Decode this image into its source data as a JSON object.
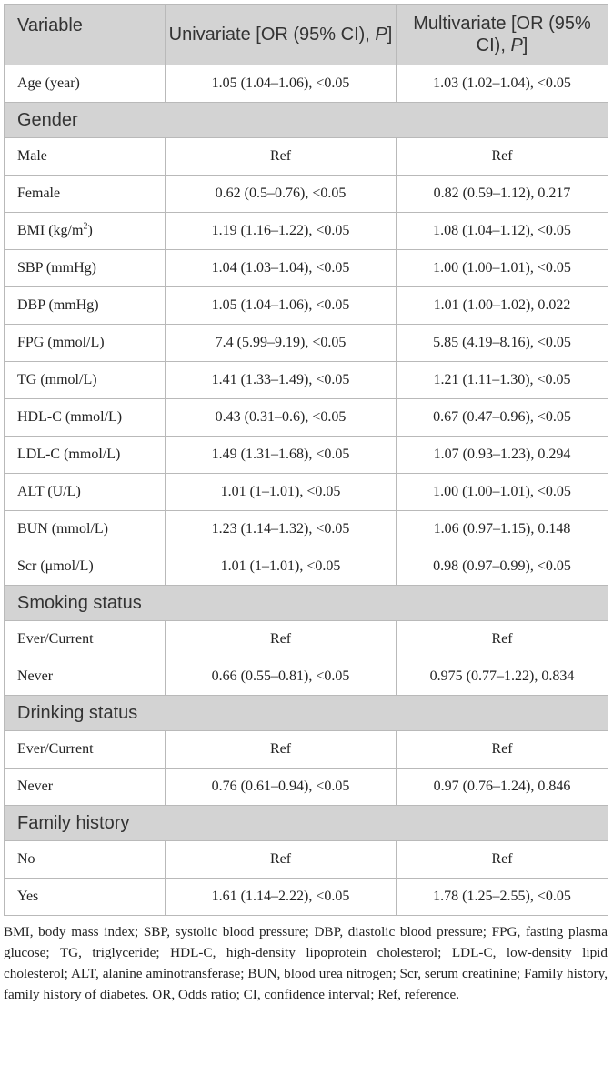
{
  "header": {
    "variable": "Variable",
    "univariate_prefix": "Univariate [OR (95% CI), ",
    "multivariate_prefix": "Multivariate [OR (95% CI), ",
    "p_symbol": "P",
    "close_bracket": "]"
  },
  "rows": [
    {
      "type": "data",
      "label": "Age (year)",
      "uni": "1.05 (1.04–1.06), <0.05",
      "multi": "1.03 (1.02–1.04), <0.05"
    },
    {
      "type": "section",
      "label": "Gender"
    },
    {
      "type": "data",
      "label": "Male",
      "uni": "Ref",
      "multi": "Ref"
    },
    {
      "type": "data",
      "label": "Female",
      "uni": "0.62 (0.5–0.76), <0.05",
      "multi": "0.82 (0.59–1.12), 0.217"
    },
    {
      "type": "data",
      "label": "BMI (kg/m",
      "sup": "2",
      "label_end": ")",
      "uni": "1.19 (1.16–1.22), <0.05",
      "multi": "1.08 (1.04–1.12), <0.05"
    },
    {
      "type": "data",
      "label": "SBP (mmHg)",
      "uni": "1.04 (1.03–1.04), <0.05",
      "multi": "1.00 (1.00–1.01), <0.05"
    },
    {
      "type": "data",
      "label": "DBP (mmHg)",
      "uni": "1.05 (1.04–1.06), <0.05",
      "multi": "1.01 (1.00–1.02), 0.022"
    },
    {
      "type": "data",
      "label": "FPG (mmol/L)",
      "uni": "7.4 (5.99–9.19), <0.05",
      "multi": "5.85 (4.19–8.16), <0.05"
    },
    {
      "type": "data",
      "label": "TG (mmol/L)",
      "uni": "1.41 (1.33–1.49), <0.05",
      "multi": "1.21 (1.11–1.30), <0.05"
    },
    {
      "type": "data",
      "label": "HDL-C (mmol/L)",
      "uni": "0.43 (0.31–0.6), <0.05",
      "multi": "0.67 (0.47–0.96), <0.05"
    },
    {
      "type": "data",
      "label": "LDL-C (mmol/L)",
      "uni": "1.49 (1.31–1.68), <0.05",
      "multi": "1.07 (0.93–1.23), 0.294"
    },
    {
      "type": "data",
      "label": "ALT (U/L)",
      "uni": "1.01 (1–1.01), <0.05",
      "multi": "1.00 (1.00–1.01), <0.05"
    },
    {
      "type": "data",
      "label": "BUN (mmol/L)",
      "uni": "1.23 (1.14–1.32), <0.05",
      "multi": "1.06 (0.97–1.15), 0.148"
    },
    {
      "type": "data",
      "label": "Scr (μmol/L)",
      "uni": "1.01 (1–1.01), <0.05",
      "multi": "0.98 (0.97–0.99), <0.05"
    },
    {
      "type": "section",
      "label": "Smoking status"
    },
    {
      "type": "data",
      "label": "Ever/Current",
      "uni": "Ref",
      "multi": "Ref"
    },
    {
      "type": "data",
      "label": "Never",
      "uni": "0.66 (0.55–0.81), <0.05",
      "multi": "0.975 (0.77–1.22), 0.834"
    },
    {
      "type": "section",
      "label": "Drinking status"
    },
    {
      "type": "data",
      "label": "Ever/Current",
      "uni": "Ref",
      "multi": "Ref"
    },
    {
      "type": "data",
      "label": "Never",
      "uni": "0.76 (0.61–0.94), <0.05",
      "multi": "0.97 (0.76–1.24), 0.846"
    },
    {
      "type": "section",
      "label": "Family history"
    },
    {
      "type": "data",
      "label": "No",
      "uni": "Ref",
      "multi": "Ref"
    },
    {
      "type": "data",
      "label": "Yes",
      "uni": "1.61 (1.14–2.22), <0.05",
      "multi": "1.78 (1.25–2.55), <0.05"
    }
  ],
  "footnote": "BMI, body mass index; SBP, systolic blood pressure; DBP, diastolic blood pressure; FPG, fasting plasma glucose; TG, triglyceride; HDL-C, high-density lipoprotein cholesterol; LDL-C, low-density lipid cholesterol; ALT, alanine aminotransferase; BUN, blood urea nitrogen; Scr, serum creatinine; Family history, family history of diabetes. OR, Odds ratio; CI, confidence interval; Ref, reference."
}
